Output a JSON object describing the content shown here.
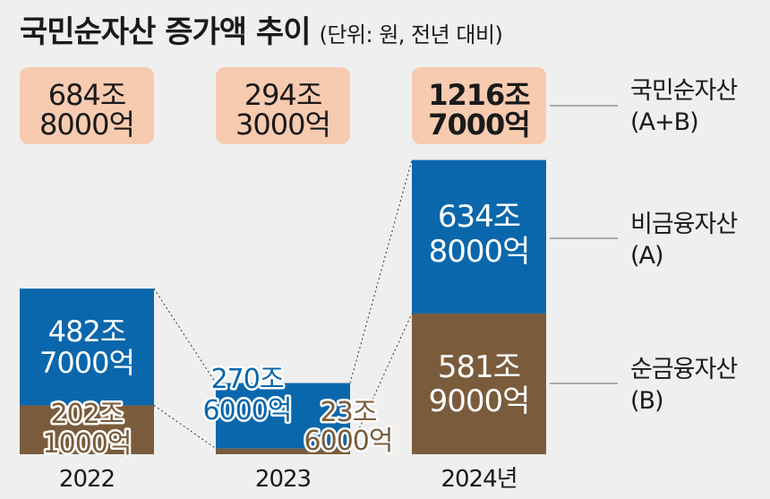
{
  "title": "국민순자산 증가액 추이",
  "unit_note": "(단위: 원, 전년 대비)",
  "colors": {
    "background": "#efefef",
    "non_financial": "#0a67ac",
    "net_financial": "#7a5c3c",
    "total_box": "#f7cbb0",
    "text_dark": "#1a1a1a",
    "label_white": "#ffffff"
  },
  "chart_data": {
    "type": "bar",
    "stacked": true,
    "categories": [
      "2022",
      "2023",
      "2024년"
    ],
    "series": [
      {
        "name": "순금융자산",
        "legend_line1": "순금융자산",
        "legend_line2": "(B)",
        "values": [
          202.1,
          23.6,
          581.9
        ],
        "labels": [
          [
            "202조",
            "1000억"
          ],
          [
            "23조",
            "6000억"
          ],
          [
            "581조",
            "9000억"
          ]
        ]
      },
      {
        "name": "비금융자산",
        "legend_line1": "비금융자산",
        "legend_line2": "(A)",
        "values": [
          482.7,
          270.6,
          634.8
        ],
        "labels": [
          [
            "482조",
            "7000억"
          ],
          [
            "270조",
            "6000억"
          ],
          [
            "634조",
            "8000억"
          ]
        ]
      }
    ],
    "totals": {
      "name": "국민순자산",
      "legend_line1": "국민순자산",
      "legend_line2": "(A+B)",
      "values": [
        684.8,
        294.3,
        1216.7
      ],
      "labels": [
        [
          "684조",
          "8000억"
        ],
        [
          "294조",
          "3000억"
        ],
        [
          "1216조",
          "7000억"
        ]
      ]
    },
    "value_unit": "조원"
  }
}
